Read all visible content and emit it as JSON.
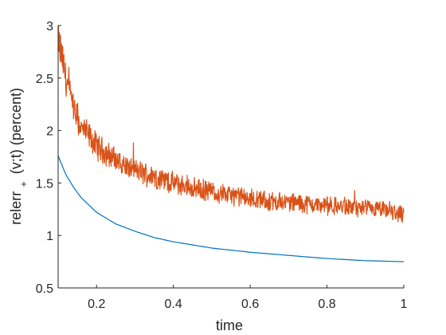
{
  "chart_data": {
    "type": "line",
    "xlabel": "time",
    "ylabel_main": "relerr",
    "ylabel_sub": "+",
    "ylabel_rest": "(v;t) (percent)",
    "xlim": [
      0.1,
      1.0
    ],
    "ylim": [
      0.5,
      3.0
    ],
    "xticks": [
      0.2,
      0.4,
      0.6,
      0.8,
      1.0
    ],
    "xtick_labels": [
      "0.2",
      "0.4",
      "0.6",
      "0.8",
      "1"
    ],
    "yticks": [
      0.5,
      1.0,
      1.5,
      2.0,
      2.5,
      3.0
    ],
    "ytick_labels": [
      "0.5",
      "1",
      "1.5",
      "2",
      "2.5",
      "3"
    ],
    "grid": false,
    "series": [
      {
        "color": "#0072BD",
        "style": "smooth",
        "x": [
          0.1,
          0.12,
          0.14,
          0.16,
          0.18,
          0.2,
          0.25,
          0.3,
          0.35,
          0.4,
          0.45,
          0.5,
          0.6,
          0.7,
          0.8,
          0.9,
          1.0
        ],
        "values": [
          1.76,
          1.58,
          1.46,
          1.36,
          1.29,
          1.22,
          1.11,
          1.04,
          0.98,
          0.94,
          0.91,
          0.88,
          0.84,
          0.81,
          0.78,
          0.76,
          0.75
        ]
      },
      {
        "color": "#D95319",
        "style": "noisy",
        "x": [
          0.1,
          0.11,
          0.12,
          0.13,
          0.14,
          0.15,
          0.16,
          0.18,
          0.2,
          0.22,
          0.25,
          0.28,
          0.3,
          0.35,
          0.4,
          0.45,
          0.5,
          0.55,
          0.6,
          0.65,
          0.7,
          0.75,
          0.8,
          0.85,
          0.9,
          0.95,
          1.0
        ],
        "values": [
          2.85,
          2.7,
          2.5,
          2.35,
          2.2,
          2.1,
          2.02,
          1.95,
          1.85,
          1.8,
          1.72,
          1.65,
          1.62,
          1.56,
          1.5,
          1.45,
          1.42,
          1.38,
          1.35,
          1.32,
          1.32,
          1.3,
          1.28,
          1.27,
          1.25,
          1.24,
          1.2
        ],
        "noise_amplitude": 0.09
      }
    ]
  }
}
